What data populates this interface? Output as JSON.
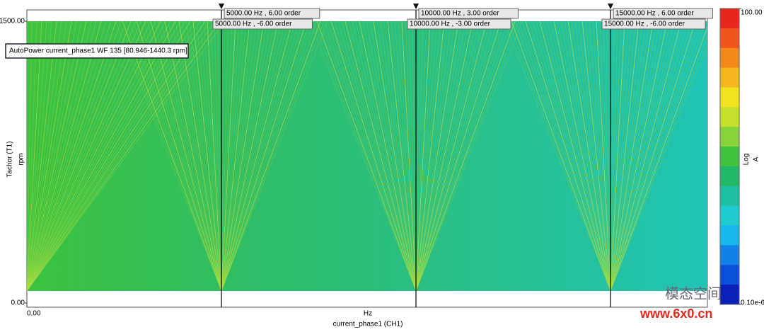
{
  "chart_data": {
    "type": "colormap",
    "annotation": "AutoPower current_phase1 WF 135 [80.946-1440.3 rpm]",
    "x_label": "Hz",
    "x_title": "current_phase1 (CH1)",
    "y_label": "Tachor (T1)",
    "y_unit": "rpm",
    "xlim": [
      0,
      17490
    ],
    "xticks": [
      {
        "value": 0,
        "label": "0.00"
      }
    ],
    "ylim": [
      0,
      1500
    ],
    "yticks": [
      {
        "value": 0,
        "label": "0.00"
      },
      {
        "value": 1500,
        "label": "1500.00"
      }
    ],
    "cursors": [
      {
        "value": 5000,
        "labels": [
          "5000.00 Hz , 6.00 order",
          "5000.00 Hz , -6.00 order"
        ]
      },
      {
        "value": 10000,
        "labels": [
          "10000.00 Hz , 3.00 order",
          "10000.00 Hz , -3.00 order"
        ]
      },
      {
        "value": 15000,
        "labels": [
          "15000.00 Hz , 6.00 order",
          "15000.00 Hz , -6.00 order"
        ]
      }
    ],
    "colorbar": {
      "log_scale": true,
      "ticks": [
        {
          "value": 100,
          "label": "100.00"
        },
        {
          "value": 1e-07,
          "label": "0.10e-6"
        }
      ],
      "scale_label": "Log",
      "unit": "A",
      "colors": [
        "#e8261c",
        "#f0561a",
        "#f2891a",
        "#f5b81c",
        "#f2e21e",
        "#c4e02a",
        "#86d43a",
        "#3fc23d",
        "#22b86a",
        "#1ec0a0",
        "#1ecbd0",
        "#19b6ee",
        "#1382e8",
        "#0c4fd8",
        "#0a20b8"
      ]
    },
    "watermark": {
      "name": "模态空间",
      "url": "www.6x0.cn"
    }
  }
}
